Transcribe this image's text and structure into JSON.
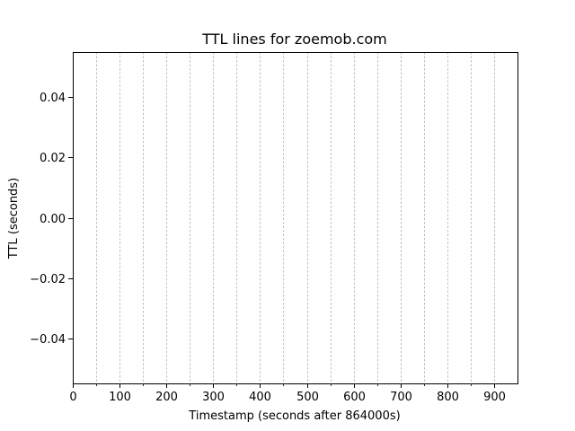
{
  "chart_data": {
    "type": "line",
    "title": "TTL lines for zoemob.com",
    "xlabel": "Timestamp (seconds after 864000s)",
    "ylabel": "TTL (seconds)",
    "xlim": [
      0,
      950
    ],
    "ylim": [
      -0.055,
      0.055
    ],
    "x_ticks": [
      0,
      100,
      200,
      300,
      400,
      500,
      600,
      700,
      800,
      900
    ],
    "x_tick_labels": [
      "0",
      "100",
      "200",
      "300",
      "400",
      "500",
      "600",
      "700",
      "800",
      "900"
    ],
    "x_minor_ticks": [
      50,
      150,
      250,
      350,
      450,
      550,
      650,
      750,
      850
    ],
    "y_ticks": [
      -0.04,
      -0.02,
      0.0,
      0.02,
      0.04
    ],
    "y_tick_labels": [
      "−0.04",
      "−0.02",
      "0.00",
      "0.02",
      "0.04"
    ],
    "vertical_gridlines": [
      50,
      100,
      150,
      200,
      250,
      300,
      350,
      400,
      450,
      500,
      550,
      600,
      650,
      700,
      750,
      800,
      850,
      900
    ],
    "grid": "x-only-dashed",
    "series": [],
    "colors": {
      "grid": "#b0b0b0",
      "axis": "#000000",
      "background": "#ffffff"
    }
  }
}
